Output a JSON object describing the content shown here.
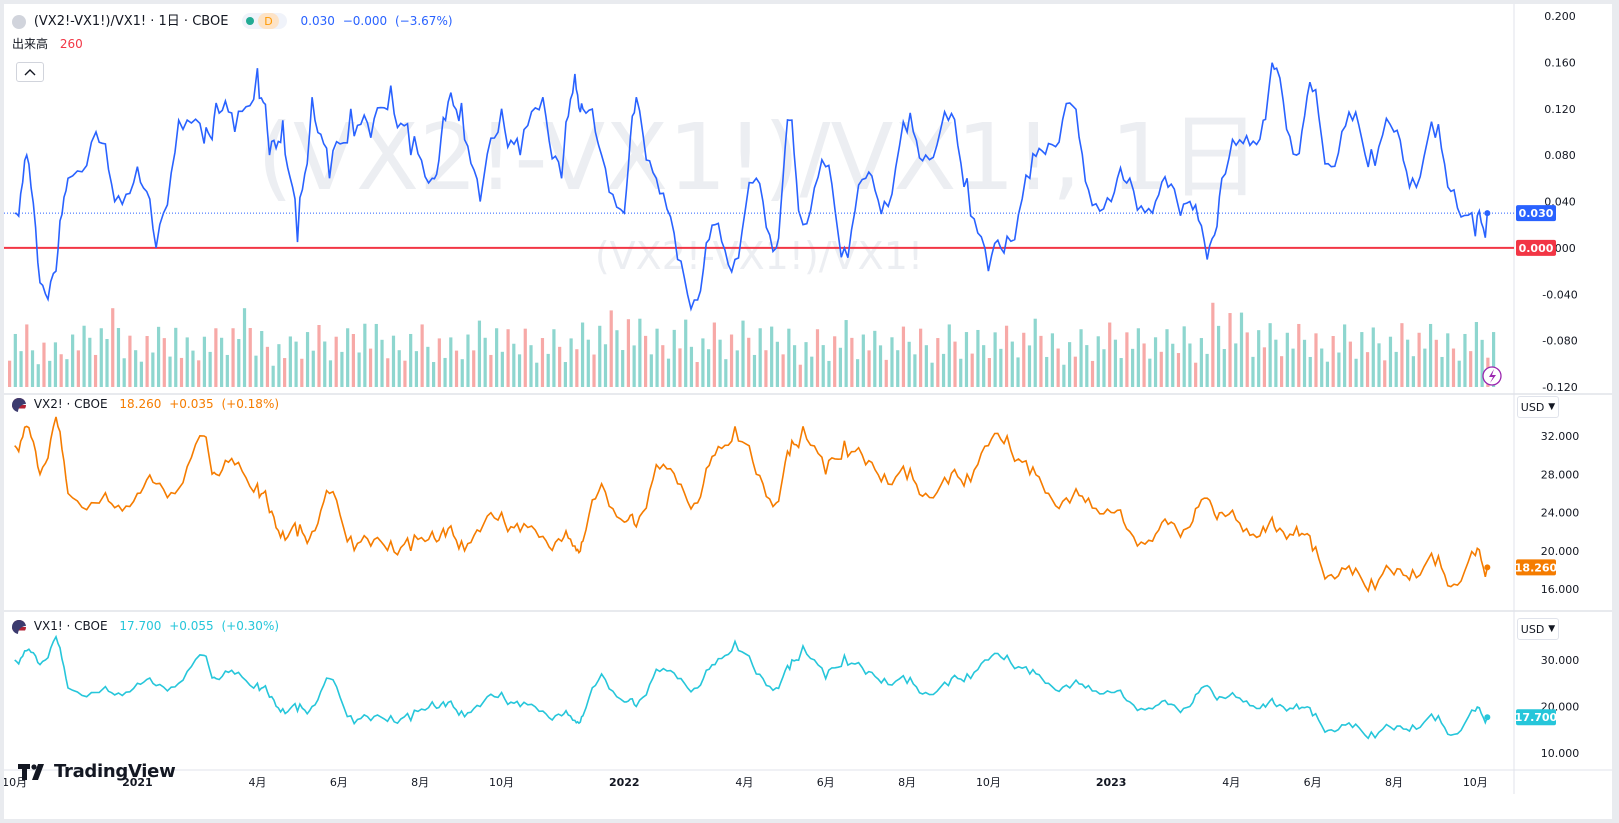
{
  "panes": {
    "ratio": {
      "legend_title": "(VX2!-VX1!)/VX1! · 1日 · CBOE",
      "interval_badge": "D",
      "last_value": "0.030",
      "change": "−0.000",
      "change_pct": "(−3.67%)",
      "volume_label": "出来高",
      "volume_value": "260",
      "watermark_big": "(VX2!-VX1!)/VX1!, 1日",
      "watermark_small": "(VX2!-VX1!)/VX1!",
      "price_label": "0.030",
      "zero_label": "0.000"
    },
    "vx2": {
      "legend_title": "VX2! · CBOE",
      "last_value": "18.260",
      "change": "+0.035",
      "change_pct": "(+0.18%)",
      "price_label": "18.260",
      "currency": "USD"
    },
    "vx1": {
      "legend_title": "VX1! · CBOE",
      "last_value": "17.700",
      "change": "+0.055",
      "change_pct": "(+0.30%)",
      "price_label": "17.700",
      "currency": "USD"
    }
  },
  "branding": {
    "logo_text": "TradingView"
  },
  "colors": {
    "ratio_line": "#2962ff",
    "zero_line": "#f23645",
    "vx2_line": "#f57c00",
    "vx1_line": "#26c6da",
    "volume_up": "#8ed6cf",
    "volume_down": "#f7a9a7"
  },
  "chart_data": [
    {
      "type": "line",
      "name": "ratio",
      "series": [
        {
          "name": "(VX2!-VX1!)/VX1!",
          "x": [
            "2020-10-01",
            "2020-10-10",
            "2020-10-20",
            "2020-11-01",
            "2020-11-10",
            "2020-12-01",
            "2020-12-15",
            "2021-01-01",
            "2021-01-15",
            "2021-02-01",
            "2021-02-20",
            "2021-03-01",
            "2021-03-15",
            "2021-04-01",
            "2021-04-10",
            "2021-04-20",
            "2021-05-01",
            "2021-05-12",
            "2021-05-25",
            "2021-06-10",
            "2021-06-25",
            "2021-07-10",
            "2021-07-25",
            "2021-08-10",
            "2021-08-20",
            "2021-09-01",
            "2021-09-15",
            "2021-10-01",
            "2021-10-15",
            "2021-11-01",
            "2021-11-15",
            "2021-11-25",
            "2021-12-01",
            "2021-12-15",
            "2022-01-01",
            "2022-01-10",
            "2022-01-25",
            "2022-02-10",
            "2022-02-25",
            "2022-03-10",
            "2022-03-25",
            "2022-04-10",
            "2022-04-25",
            "2022-05-05",
            "2022-05-15",
            "2022-06-01",
            "2022-06-15",
            "2022-07-01",
            "2022-07-15",
            "2022-08-01",
            "2022-08-15",
            "2022-09-01",
            "2022-09-15",
            "2022-10-01",
            "2022-10-15",
            "2022-11-01",
            "2022-11-15",
            "2022-12-01",
            "2022-12-15",
            "2023-01-01",
            "2023-01-15",
            "2023-02-01",
            "2023-02-15",
            "2023-03-01",
            "2023-03-14",
            "2023-03-25",
            "2023-04-10",
            "2023-04-25",
            "2023-05-05",
            "2023-05-20",
            "2023-06-01",
            "2023-06-15",
            "2023-07-01",
            "2023-07-15",
            "2023-08-01",
            "2023-08-15",
            "2023-09-01",
            "2023-09-15",
            "2023-10-01",
            "2023-10-10"
          ],
          "values": [
            0.03,
            0.08,
            -0.03,
            -0.02,
            0.06,
            0.1,
            0.04,
            0.07,
            0.0,
            0.11,
            0.09,
            0.125,
            0.1,
            0.155,
            0.08,
            0.11,
            0.005,
            0.13,
            0.06,
            0.12,
            0.095,
            0.14,
            0.08,
            0.06,
            0.11,
            0.125,
            0.04,
            0.12,
            0.08,
            0.13,
            0.06,
            0.15,
            0.12,
            0.08,
            0.03,
            0.13,
            0.06,
            -0.01,
            -0.045,
            0.02,
            -0.01,
            0.06,
            0.0,
            0.11,
            0.02,
            0.07,
            0.0,
            0.06,
            0.04,
            0.1,
            0.08,
            0.11,
            0.06,
            -0.02,
            0.01,
            0.06,
            0.09,
            0.125,
            0.05,
            0.04,
            0.06,
            0.03,
            0.055,
            0.04,
            -0.01,
            0.06,
            0.09,
            0.11,
            0.155,
            0.08,
            0.135,
            0.07,
            0.11,
            0.085,
            0.1,
            0.06,
            0.095,
            0.05,
            0.01,
            0.03
          ]
        }
      ],
      "ylim": [
        -0.12,
        0.2
      ],
      "yticks": [
        "0.200",
        "0.160",
        "0.120",
        "0.080",
        "0.040",
        "0.000",
        "-0.040",
        "-0.080",
        "-0.120"
      ],
      "reference_line": 0.0,
      "volume": [
        260,
        210,
        180,
        240,
        260,
        300,
        220,
        250,
        280,
        200,
        230,
        260,
        300,
        240,
        210,
        260,
        250,
        230,
        280,
        240,
        220,
        260,
        230,
        200,
        240,
        260,
        220,
        250,
        240,
        230,
        260,
        280,
        300,
        260,
        250,
        280,
        230,
        260,
        240,
        260,
        230,
        250,
        220,
        240,
        270,
        240,
        220,
        230,
        250,
        240,
        260,
        230,
        250,
        240,
        260,
        230,
        220,
        240,
        260,
        250,
        230,
        220,
        260,
        240,
        350,
        300,
        260,
        250,
        240,
        230,
        250,
        260,
        240,
        230,
        250,
        240,
        230,
        260,
        270,
        260
      ]
    },
    {
      "type": "line",
      "name": "vx2",
      "series": [
        {
          "name": "VX2!",
          "x": [
            "2020-10-01",
            "2020-10-10",
            "2020-10-20",
            "2020-11-01",
            "2020-11-10",
            "2020-12-01",
            "2020-12-15",
            "2021-01-01",
            "2021-01-15",
            "2021-02-01",
            "2021-02-20",
            "2021-03-01",
            "2021-03-15",
            "2021-04-01",
            "2021-04-10",
            "2021-04-20",
            "2021-05-01",
            "2021-05-12",
            "2021-05-25",
            "2021-06-10",
            "2021-06-25",
            "2021-07-10",
            "2021-07-25",
            "2021-08-10",
            "2021-08-20",
            "2021-09-01",
            "2021-09-15",
            "2021-10-01",
            "2021-10-15",
            "2021-11-01",
            "2021-11-15",
            "2021-11-25",
            "2021-12-01",
            "2021-12-15",
            "2022-01-01",
            "2022-01-10",
            "2022-01-25",
            "2022-02-10",
            "2022-02-25",
            "2022-03-10",
            "2022-03-25",
            "2022-04-10",
            "2022-04-25",
            "2022-05-05",
            "2022-05-15",
            "2022-06-01",
            "2022-06-15",
            "2022-07-01",
            "2022-07-15",
            "2022-08-01",
            "2022-08-15",
            "2022-09-01",
            "2022-09-15",
            "2022-10-01",
            "2022-10-15",
            "2022-11-01",
            "2022-11-15",
            "2022-12-01",
            "2022-12-15",
            "2023-01-01",
            "2023-01-15",
            "2023-02-01",
            "2023-02-15",
            "2023-03-01",
            "2023-03-14",
            "2023-03-25",
            "2023-04-10",
            "2023-04-25",
            "2023-05-05",
            "2023-05-20",
            "2023-06-01",
            "2023-06-15",
            "2023-07-01",
            "2023-07-15",
            "2023-08-01",
            "2023-08-15",
            "2023-09-01",
            "2023-09-15",
            "2023-10-01",
            "2023-10-10"
          ],
          "values": [
            31.0,
            33.0,
            28.0,
            34.0,
            26.0,
            25.0,
            24.5,
            26.0,
            27.0,
            26.5,
            32.0,
            28.0,
            29.0,
            27.0,
            24.0,
            22.0,
            21.5,
            22.0,
            26.0,
            21.5,
            20.5,
            21.0,
            20.0,
            22.0,
            21.5,
            21.0,
            22.0,
            24.0,
            22.0,
            21.5,
            21.0,
            20.5,
            21.0,
            27.0,
            23.0,
            22.5,
            29.0,
            27.0,
            25.0,
            30.0,
            33.0,
            28.0,
            25.0,
            30.0,
            33.0,
            28.0,
            31.5,
            29.0,
            28.0,
            27.5,
            26.0,
            27.0,
            28.0,
            31.0,
            32.0,
            28.0,
            26.0,
            25.0,
            25.5,
            24.0,
            22.0,
            21.0,
            23.0,
            22.5,
            25.5,
            24.0,
            22.0,
            22.5,
            22.0,
            22.5,
            20.0,
            17.5,
            17.5,
            17.0,
            17.5,
            18.0,
            18.5,
            16.5,
            19.5,
            18.26
          ]
        }
      ],
      "ylim": [
        14.5,
        35.5
      ],
      "yticks": [
        "32.000",
        "28.000",
        "24.000",
        "20.000",
        "16.000"
      ]
    },
    {
      "type": "line",
      "name": "vx1",
      "series": [
        {
          "name": "VX1!",
          "x": [
            "2020-10-01",
            "2020-10-10",
            "2020-10-20",
            "2020-11-01",
            "2020-11-10",
            "2020-12-01",
            "2020-12-15",
            "2021-01-01",
            "2021-01-15",
            "2021-02-01",
            "2021-02-20",
            "2021-03-01",
            "2021-03-15",
            "2021-04-01",
            "2021-04-10",
            "2021-04-20",
            "2021-05-01",
            "2021-05-12",
            "2021-05-25",
            "2021-06-10",
            "2021-06-25",
            "2021-07-10",
            "2021-07-25",
            "2021-08-10",
            "2021-08-20",
            "2021-09-01",
            "2021-09-15",
            "2021-10-01",
            "2021-10-15",
            "2021-11-01",
            "2021-11-15",
            "2021-11-25",
            "2021-12-01",
            "2021-12-15",
            "2022-01-01",
            "2022-01-10",
            "2022-01-25",
            "2022-02-10",
            "2022-02-25",
            "2022-03-10",
            "2022-03-25",
            "2022-04-10",
            "2022-04-25",
            "2022-05-05",
            "2022-05-15",
            "2022-06-01",
            "2022-06-15",
            "2022-07-01",
            "2022-07-15",
            "2022-08-01",
            "2022-08-15",
            "2022-09-01",
            "2022-09-15",
            "2022-10-01",
            "2022-10-15",
            "2022-11-01",
            "2022-11-15",
            "2022-12-01",
            "2022-12-15",
            "2023-01-01",
            "2023-01-15",
            "2023-02-01",
            "2023-02-15",
            "2023-03-01",
            "2023-03-14",
            "2023-03-25",
            "2023-04-10",
            "2023-04-25",
            "2023-05-05",
            "2023-05-20",
            "2023-06-01",
            "2023-06-15",
            "2023-07-01",
            "2023-07-15",
            "2023-08-01",
            "2023-08-15",
            "2023-09-01",
            "2023-09-15",
            "2023-10-01",
            "2023-10-10"
          ],
          "values": [
            30.0,
            32.0,
            29.0,
            35.0,
            24.0,
            23.0,
            22.5,
            25.0,
            24.5,
            25.0,
            31.0,
            26.0,
            27.0,
            25.0,
            22.0,
            19.5,
            19.0,
            20.0,
            26.0,
            18.0,
            17.0,
            18.0,
            17.0,
            21.0,
            20.0,
            19.0,
            20.0,
            23.0,
            20.0,
            19.0,
            18.0,
            17.0,
            18.0,
            27.0,
            21.0,
            20.0,
            28.0,
            26.0,
            24.0,
            29.0,
            34.0,
            27.0,
            24.0,
            28.0,
            33.0,
            26.0,
            31.0,
            27.0,
            26.0,
            25.0,
            23.0,
            24.5,
            27.0,
            30.0,
            31.0,
            27.0,
            25.0,
            24.0,
            24.5,
            23.0,
            21.0,
            19.5,
            20.5,
            20.0,
            24.5,
            22.0,
            21.0,
            20.5,
            20.0,
            20.5,
            18.0,
            15.0,
            15.5,
            14.5,
            15.0,
            16.0,
            17.0,
            14.0,
            19.0,
            17.7
          ]
        }
      ],
      "ylim": [
        7.0,
        40.0
      ],
      "yticks": [
        "30.000",
        "20.000",
        "10.000"
      ]
    }
  ],
  "x_axis": {
    "start": "2020-09-26",
    "end": "2023-10-15",
    "ticks": [
      {
        "date": "2020-10-01",
        "label": "10月"
      },
      {
        "date": "2021-01-01",
        "label": "2021",
        "bold": true
      },
      {
        "date": "2021-04-01",
        "label": "4月"
      },
      {
        "date": "2021-06-01",
        "label": "6月"
      },
      {
        "date": "2021-08-01",
        "label": "8月"
      },
      {
        "date": "2021-10-01",
        "label": "10月"
      },
      {
        "date": "2022-01-01",
        "label": "2022",
        "bold": true
      },
      {
        "date": "2022-04-01",
        "label": "4月"
      },
      {
        "date": "2022-06-01",
        "label": "6月"
      },
      {
        "date": "2022-08-01",
        "label": "8月"
      },
      {
        "date": "2022-10-01",
        "label": "10月"
      },
      {
        "date": "2023-01-01",
        "label": "2023",
        "bold": true
      },
      {
        "date": "2023-04-01",
        "label": "4月"
      },
      {
        "date": "2023-06-01",
        "label": "6月"
      },
      {
        "date": "2023-08-01",
        "label": "8月"
      },
      {
        "date": "2023-10-01",
        "label": "10月"
      }
    ]
  }
}
